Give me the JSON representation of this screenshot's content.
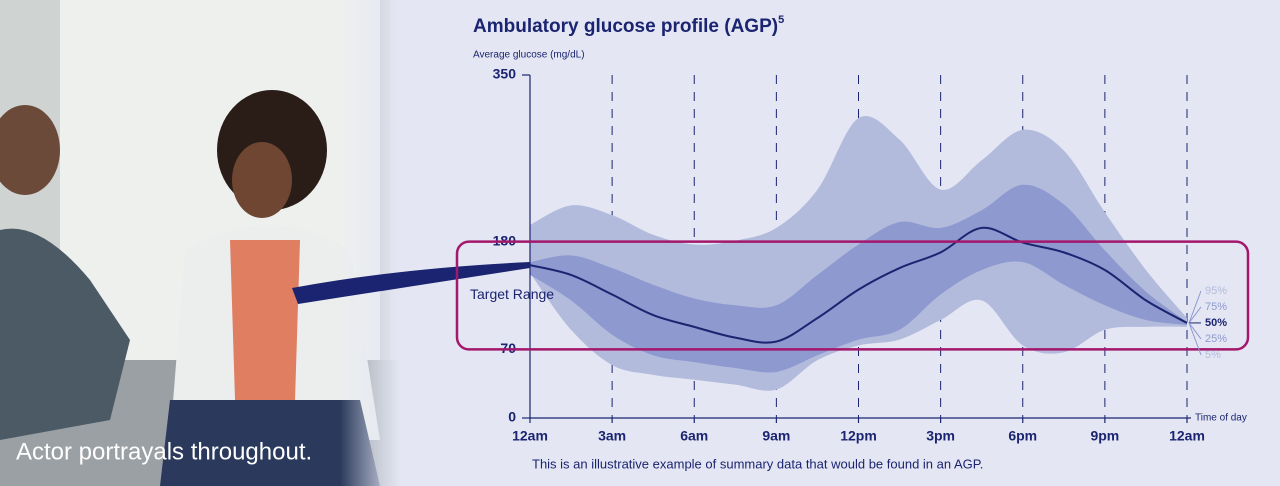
{
  "photo": {
    "caption": "Actor portrayals throughout."
  },
  "chart_data": {
    "type": "percentile-bands",
    "title": "Ambulatory glucose profile (AGP)",
    "title_footnote": "5",
    "y_label": "Average glucose (mg/dL)",
    "x_label": "Time of day",
    "footnote": "This is an illustrative example of summary data that would be found in an AGP.",
    "target_range": {
      "label": "Target Range",
      "range": [
        70,
        180
      ]
    },
    "x": [
      0,
      1.5,
      3,
      4.5,
      6,
      7.5,
      9,
      10.5,
      12,
      13.5,
      15,
      16.5,
      18,
      19.5,
      21,
      22.5,
      24
    ],
    "series": [
      {
        "name": "95%",
        "color": "#b3bbdd",
        "values": [
          197,
          217,
          207,
          187,
          177,
          181,
          194,
          233,
          306,
          284,
          233,
          263,
          294,
          273,
          210,
          151,
          102
        ]
      },
      {
        "name": "75%",
        "color": "#8e99cf",
        "values": [
          159,
          166,
          153,
          136,
          122,
          115,
          115,
          146,
          177,
          200,
          194,
          212,
          238,
          218,
          171,
          129,
          98
        ]
      },
      {
        "name": "50%",
        "color": "#1b2470",
        "values": [
          156,
          146,
          126,
          105,
          93,
          82,
          78,
          102,
          131,
          153,
          169,
          194,
          179,
          169,
          151,
          120,
          97
        ]
      },
      {
        "name": "25%",
        "color": "#8e99cf",
        "values": [
          146,
          120,
          85,
          64,
          57,
          51,
          47,
          64,
          80,
          90,
          126,
          151,
          159,
          136,
          115,
          100,
          95
        ]
      },
      {
        "name": "5%",
        "color": "#b3bbdd",
        "values": [
          148,
          90,
          54,
          44,
          39,
          34,
          29,
          59,
          74,
          80,
          100,
          120,
          74,
          67,
          90,
          93,
          93
        ]
      }
    ],
    "xlim": [
      0,
      24
    ],
    "xticks": [
      {
        "value": 0,
        "label": "12am"
      },
      {
        "value": 3,
        "label": "3am"
      },
      {
        "value": 6,
        "label": "6am"
      },
      {
        "value": 9,
        "label": "9am"
      },
      {
        "value": 12,
        "label": "12pm"
      },
      {
        "value": 15,
        "label": "3pm"
      },
      {
        "value": 18,
        "label": "6pm"
      },
      {
        "value": 21,
        "label": "9pm"
      },
      {
        "value": 24,
        "label": "12am"
      }
    ],
    "ylim": [
      0,
      350
    ],
    "yticks": [
      0,
      70,
      180,
      350
    ],
    "grid": true
  }
}
